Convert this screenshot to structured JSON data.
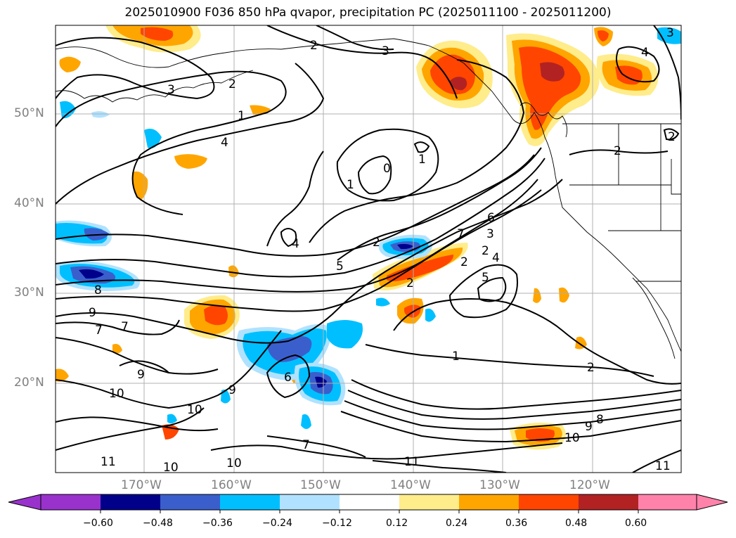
{
  "title": "2025010900 F036 850 hPa qvapor, precipitation PC (2025011100 - 2025011200)",
  "lat_labels": [
    "50°N",
    "40°N",
    "30°N",
    "20°N"
  ],
  "lon_labels": [
    "170°W",
    "160°W",
    "150°W",
    "140°W",
    "130°W",
    "120°W"
  ],
  "colorbar": {
    "ticks": [
      "−0.60",
      "−0.48",
      "−0.36",
      "−0.24",
      "−0.12",
      "0.12",
      "0.24",
      "0.36",
      "0.48",
      "0.60"
    ],
    "colors": [
      "#9932cc",
      "#00008b",
      "#3a5fcd",
      "#00bfff",
      "#b0e2ff",
      "#ffffff",
      "#ffec8b",
      "#ffa500",
      "#ff4500",
      "#b22222",
      "#ff82ab"
    ]
  },
  "contour_labels": [
    "2",
    "3",
    "4",
    "3",
    "2",
    "1",
    "0",
    "1",
    "4",
    "2",
    "5",
    "6",
    "7",
    "2",
    "3",
    "5",
    "2",
    "4",
    "2",
    "1",
    "2",
    "1",
    "7",
    "8",
    "9",
    "7",
    "9",
    "10",
    "10",
    "9",
    "6",
    "7",
    "10",
    "11",
    "10",
    "11",
    "9",
    "8",
    "10",
    "11",
    "3",
    "2",
    "2",
    "4"
  ],
  "map_features": {
    "coastline-color": "#000000",
    "contour-color": "#000000",
    "grid-color": "#b0b0b0"
  }
}
